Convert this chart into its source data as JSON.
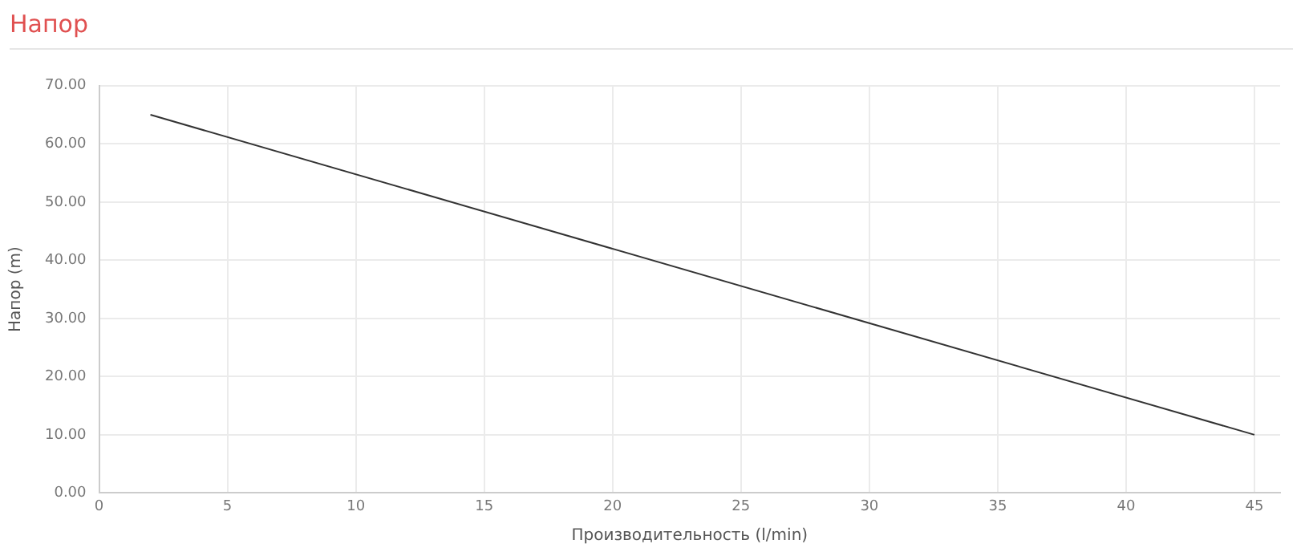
{
  "chart_data": {
    "type": "line",
    "title": "Напор",
    "xlabel": "Производительность (l/min)",
    "ylabel": "Напор (m)",
    "x": [
      2,
      45
    ],
    "series": [
      {
        "color": "#333333",
        "values": [
          65,
          10
        ]
      }
    ],
    "xlim": [
      0,
      46
    ],
    "xticks": [
      0,
      5,
      10,
      15,
      20,
      25,
      30,
      35,
      40,
      45
    ],
    "ylim": [
      0,
      70
    ],
    "yticks": [
      {
        "value": 0,
        "label": "0.00"
      },
      {
        "value": 10,
        "label": "10.00"
      },
      {
        "value": 20,
        "label": "20.00"
      },
      {
        "value": 30,
        "label": "30.00"
      },
      {
        "value": 40,
        "label": "40.00"
      },
      {
        "value": 50,
        "label": "50.00"
      },
      {
        "value": 60,
        "label": "60.00"
      },
      {
        "value": 70,
        "label": "70.00"
      }
    ],
    "grid": true,
    "legend": false
  }
}
